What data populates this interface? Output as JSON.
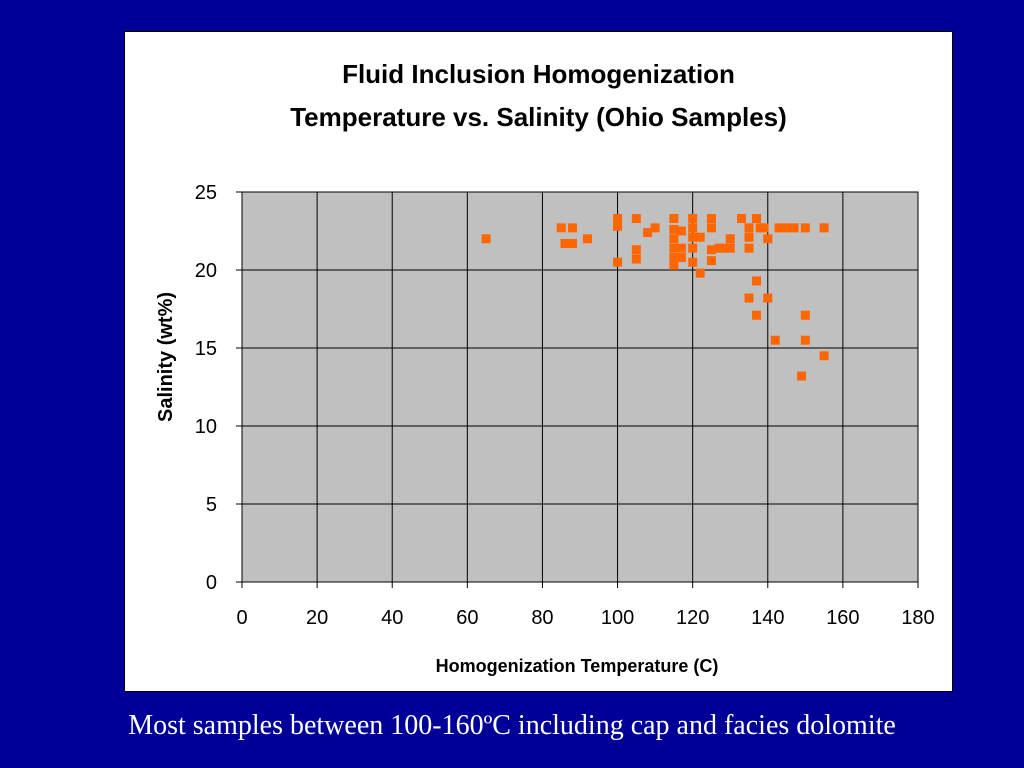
{
  "chart_data": {
    "type": "scatter",
    "title_lines": [
      "Fluid Inclusion Homogenization",
      "Temperature vs. Salinity (Ohio Samples)"
    ],
    "xlabel": "Homogenization Temperature (C)",
    "ylabel": "Salinity (wt%)",
    "xlim": [
      0,
      180
    ],
    "ylim": [
      0,
      25
    ],
    "x_ticks": [
      "0",
      "20",
      "40",
      "60",
      "80",
      "100",
      "120",
      "140",
      "160",
      "180"
    ],
    "y_ticks": [
      "0",
      "5",
      "10",
      "15",
      "20",
      "25"
    ],
    "grid": true,
    "legend": "none",
    "marker_color": "#FF6600",
    "plot_background": "#C0C0C0",
    "points": [
      [
        65,
        22
      ],
      [
        85,
        22.7
      ],
      [
        88,
        22.7
      ],
      [
        86,
        21.7
      ],
      [
        88,
        21.7
      ],
      [
        92,
        22
      ],
      [
        100,
        23.3
      ],
      [
        100,
        22.8
      ],
      [
        100,
        20.5
      ],
      [
        105,
        23.3
      ],
      [
        105,
        21.3
      ],
      [
        105,
        20.7
      ],
      [
        108,
        22.4
      ],
      [
        110,
        22.7
      ],
      [
        115,
        23.3
      ],
      [
        115,
        22.6
      ],
      [
        115,
        22
      ],
      [
        115,
        21.4
      ],
      [
        115,
        20.8
      ],
      [
        115,
        20.3
      ],
      [
        117,
        22.5
      ],
      [
        117,
        21.4
      ],
      [
        117,
        20.8
      ],
      [
        120,
        23.3
      ],
      [
        120,
        22.7
      ],
      [
        120,
        22.1
      ],
      [
        120,
        21.4
      ],
      [
        120,
        20.5
      ],
      [
        122,
        22.1
      ],
      [
        122,
        19.8
      ],
      [
        125,
        23.3
      ],
      [
        125,
        22.7
      ],
      [
        125,
        21.3
      ],
      [
        125,
        20.6
      ],
      [
        127,
        21.4
      ],
      [
        128,
        21.4
      ],
      [
        130,
        22
      ],
      [
        130,
        21.4
      ],
      [
        133,
        23.3
      ],
      [
        135,
        22.7
      ],
      [
        135,
        22.1
      ],
      [
        135,
        21.4
      ],
      [
        137,
        23.3
      ],
      [
        138,
        22.7
      ],
      [
        139,
        22.7
      ],
      [
        140,
        22
      ],
      [
        137,
        19.3
      ],
      [
        143,
        22.7
      ],
      [
        145,
        22.7
      ],
      [
        147,
        22.7
      ],
      [
        150,
        22.7
      ],
      [
        155,
        22.7
      ],
      [
        135,
        18.2
      ],
      [
        140,
        18.2
      ],
      [
        137,
        17.1
      ],
      [
        150,
        17.1
      ],
      [
        142,
        15.5
      ],
      [
        150,
        15.5
      ],
      [
        155,
        14.5
      ],
      [
        149,
        13.2
      ]
    ]
  },
  "caption": "Most samples between 100-160ºC including cap and facies dolomite"
}
